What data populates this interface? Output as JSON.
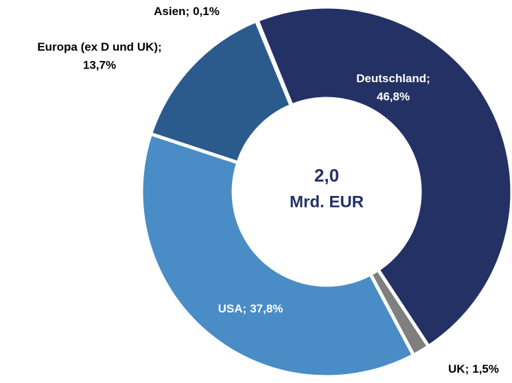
{
  "chart_data": {
    "type": "donut",
    "categories": [
      "Deutschland",
      "UK",
      "USA",
      "Europa (ex D und UK)",
      "Asien"
    ],
    "values": [
      46.8,
      1.5,
      37.8,
      13.7,
      0.1
    ],
    "value_labels": [
      "46,8%",
      "1,5%",
      "37,8%",
      "13,7%",
      "0,1%"
    ],
    "separator": ";",
    "colors": [
      "#243165",
      "#7f7f7f",
      "#4a8cc6",
      "#2a5b8c",
      "#4a8cc6"
    ],
    "center_label": [
      "2,0",
      "Mrd. EUR"
    ]
  }
}
